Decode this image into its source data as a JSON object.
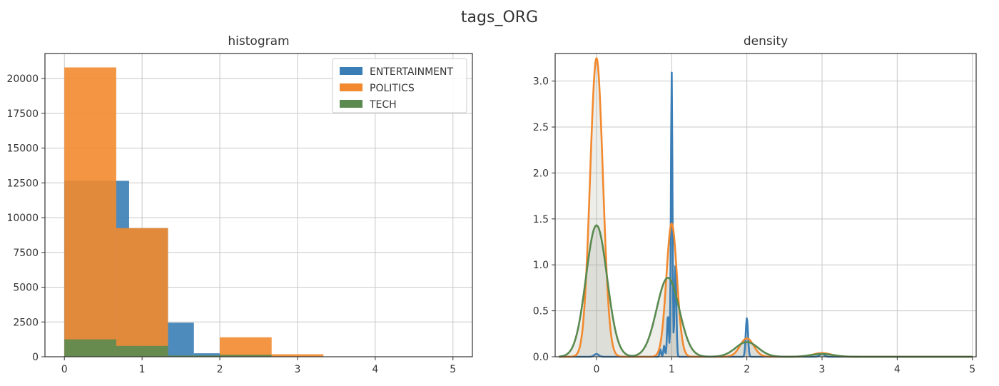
{
  "figure": {
    "title": "tags_ORG"
  },
  "chart_data": [
    {
      "type": "bar",
      "title": "histogram",
      "xlim": [
        -0.25,
        5.25
      ],
      "ylim": [
        0,
        21800
      ],
      "xticks": [
        0,
        1,
        2,
        3,
        4,
        5
      ],
      "yticks": [
        0,
        2500,
        5000,
        7500,
        10000,
        12500,
        15000,
        17500,
        20000
      ],
      "grid": true,
      "legend": "top-right",
      "series": [
        {
          "name": "ENTERTAINMENT",
          "color": "#3a7eb5",
          "bins": [
            {
              "x0": 0.0,
              "x1": 0.667,
              "value": 12650
            },
            {
              "x0": 0.667,
              "x1": 0.833,
              "value": 12650
            },
            {
              "x0": 0.833,
              "x1": 1.333,
              "value": 9250
            },
            {
              "x0": 1.333,
              "x1": 1.667,
              "value": 2450
            },
            {
              "x0": 1.667,
              "x1": 2.0,
              "value": 250
            },
            {
              "x0": 2.0,
              "x1": 2.667,
              "value": 150
            }
          ]
        },
        {
          "name": "POLITICS",
          "color": "#f2892e",
          "bins": [
            {
              "x0": 0.0,
              "x1": 0.667,
              "value": 20800
            },
            {
              "x0": 0.667,
              "x1": 1.333,
              "value": 9250
            },
            {
              "x0": 1.333,
              "x1": 2.0,
              "value": 0
            },
            {
              "x0": 2.0,
              "x1": 2.667,
              "value": 1400
            },
            {
              "x0": 2.667,
              "x1": 3.333,
              "value": 180
            }
          ]
        },
        {
          "name": "TECH",
          "color": "#5a8a50",
          "bins": [
            {
              "x0": 0.0,
              "x1": 0.667,
              "value": 1250
            },
            {
              "x0": 0.667,
              "x1": 1.333,
              "value": 780
            },
            {
              "x0": 1.333,
              "x1": 2.0,
              "value": 90
            },
            {
              "x0": 2.0,
              "x1": 2.667,
              "value": 140
            },
            {
              "x0": 2.667,
              "x1": 3.333,
              "value": 20
            }
          ]
        }
      ]
    },
    {
      "type": "line",
      "title": "density",
      "xlim": [
        -0.55,
        5.05
      ],
      "ylim": [
        0,
        3.3
      ],
      "xticks": [
        0,
        1,
        2,
        3,
        4,
        5
      ],
      "yticks": [
        0.0,
        0.5,
        1.0,
        1.5,
        2.0,
        2.5,
        3.0
      ],
      "grid": true,
      "series": [
        {
          "name": "ENTERTAINMENT",
          "color": "#3a7eb5",
          "peaks": [
            {
              "mu": 1.0,
              "sigma": 0.01,
              "amp": 3.1
            },
            {
              "mu": 1.05,
              "sigma": 0.012,
              "amp": 1.0
            },
            {
              "mu": 0.95,
              "sigma": 0.012,
              "amp": 0.45
            },
            {
              "mu": 2.0,
              "sigma": 0.015,
              "amp": 0.42
            },
            {
              "mu": 0.9,
              "sigma": 0.01,
              "amp": 0.12
            },
            {
              "mu": 0.85,
              "sigma": 0.01,
              "amp": 0.08
            },
            {
              "mu": 0.0,
              "sigma": 0.03,
              "amp": 0.03
            },
            {
              "mu": 3.0,
              "sigma": 0.03,
              "amp": 0.03
            }
          ]
        },
        {
          "name": "POLITICS",
          "color": "#f2892e",
          "peaks": [
            {
              "mu": 0.0,
              "sigma": 0.085,
              "amp": 3.25
            },
            {
              "mu": 1.0,
              "sigma": 0.07,
              "amp": 1.45
            },
            {
              "mu": 2.0,
              "sigma": 0.09,
              "amp": 0.2
            },
            {
              "mu": 3.0,
              "sigma": 0.12,
              "amp": 0.04
            }
          ]
        },
        {
          "name": "TECH",
          "color": "#5a8a50",
          "peaks": [
            {
              "mu": 0.0,
              "sigma": 0.14,
              "amp": 1.43
            },
            {
              "mu": 0.95,
              "sigma": 0.15,
              "amp": 0.86
            },
            {
              "mu": 2.0,
              "sigma": 0.15,
              "amp": 0.16
            },
            {
              "mu": 3.0,
              "sigma": 0.15,
              "amp": 0.03
            }
          ]
        }
      ]
    }
  ]
}
